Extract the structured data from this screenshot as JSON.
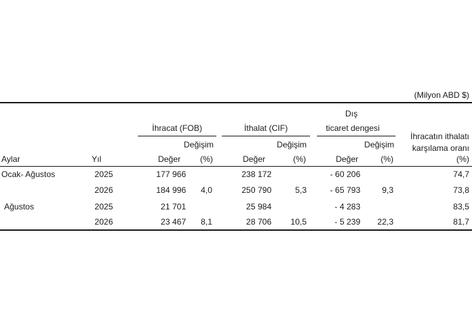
{
  "unit_note": "(Milyon ABD $)",
  "headers": {
    "ihracat": "İhracat (FOB)",
    "ithalat": "İthalat (CIF)",
    "dis_line1": "Dış",
    "dis_line2": "ticaret dengesi",
    "oran_line1": "İhracatın ithalatı",
    "oran_line2": "karşılama oranı",
    "degisim": "Değişim",
    "aylar": "Aylar",
    "yil": "Yıl",
    "deger": "Değer",
    "pct": "(%)"
  },
  "rows": [
    {
      "period": "Ocak- Ağustos",
      "year": "2025",
      "ihr_deger": "177 966",
      "ihr_pct": "",
      "ith_deger": "238 172",
      "ith_pct": "",
      "dis_deger": "- 60 206",
      "dis_pct": "",
      "oran": "74,7"
    },
    {
      "period": "",
      "year": "2026",
      "ihr_deger": "184 996",
      "ihr_pct": "4,0",
      "ith_deger": "250 790",
      "ith_pct": "5,3",
      "dis_deger": "- 65 793",
      "dis_pct": "9,3",
      "oran": "73,8"
    },
    {
      "period": "Ağustos",
      "year": "2025",
      "ihr_deger": "21 701",
      "ihr_pct": "",
      "ith_deger": "25 984",
      "ith_pct": "",
      "dis_deger": "- 4 283",
      "dis_pct": "",
      "oran": "83,5"
    },
    {
      "period": "",
      "year": "2026",
      "ihr_deger": "23 467",
      "ihr_pct": "8,1",
      "ith_deger": "28 706",
      "ith_pct": "10,5",
      "dis_deger": "- 5 239",
      "dis_pct": "22,3",
      "oran": "81,7"
    }
  ]
}
